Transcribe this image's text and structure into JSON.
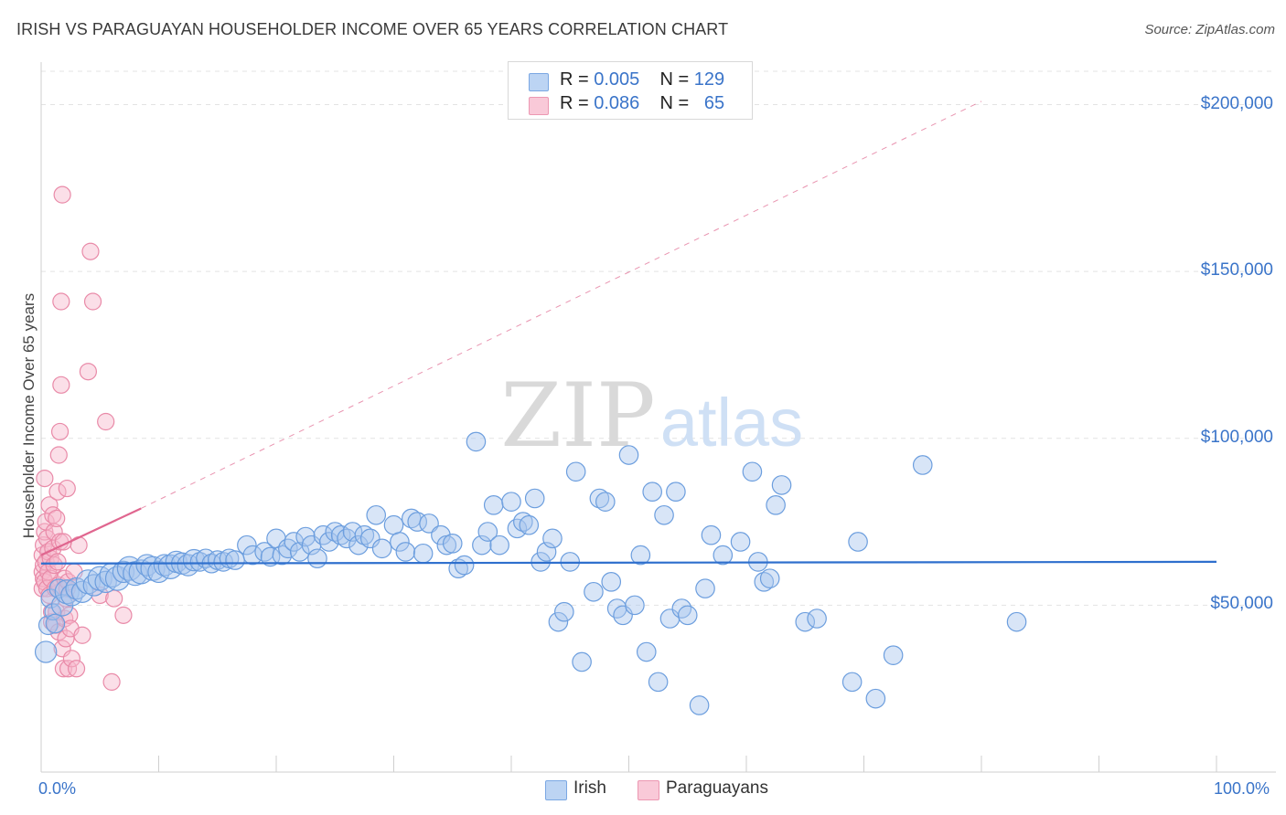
{
  "header": {
    "title": "IRISH VS PARAGUAYAN HOUSEHOLDER INCOME OVER 65 YEARS CORRELATION CHART",
    "source": "Source: ZipAtlas.com"
  },
  "legend": {
    "r_label": "R =",
    "n_label": "N =",
    "series": [
      {
        "name": "Irish",
        "r": "0.005",
        "n": "129"
      },
      {
        "name": "Paraguayans",
        "r": "0.086",
        "n": "65"
      }
    ]
  },
  "watermark": {
    "part1": "ZIP",
    "part2": "atlas"
  },
  "colors": {
    "irish_fill": "#a9c6ee",
    "irish_stroke": "#6c9ede",
    "irish_line": "#2e6fcd",
    "para_fill": "#f6b9cc",
    "para_stroke": "#e98aa8",
    "para_line": "#e0668f",
    "axis_text": "#3a74c9"
  },
  "chart_data": {
    "type": "scatter",
    "title": "IRISH VS PARAGUAYAN HOUSEHOLDER INCOME OVER 65 YEARS CORRELATION CHART",
    "xlabel": "",
    "ylabel": "Householder Income Over 65 years",
    "xlim": [
      0,
      100
    ],
    "ylim": [
      0,
      210000
    ],
    "x_tick_labels": [
      "0.0%",
      "100.0%"
    ],
    "y_ticks": [
      50000,
      100000,
      150000,
      200000
    ],
    "y_tick_labels": [
      "$50,000",
      "$100,000",
      "$150,000",
      "$200,000"
    ],
    "legend_position": "bottom-center",
    "series": [
      {
        "name": "Irish",
        "r": 0.005,
        "n": 129,
        "trend": {
          "x": [
            0,
            100
          ],
          "y": [
            62500,
            63000
          ],
          "style": "solid"
        },
        "points": [
          [
            0.4,
            36000,
            4
          ],
          [
            0.6,
            44000,
            3
          ],
          [
            0.8,
            52000,
            3
          ],
          [
            1.0,
            48000,
            2
          ],
          [
            1.2,
            44500,
            3
          ],
          [
            1.5,
            55000,
            3
          ],
          [
            1.8,
            50000,
            4
          ],
          [
            2.2,
            54000,
            5
          ],
          [
            2.6,
            53000,
            4
          ],
          [
            3.0,
            55000,
            4
          ],
          [
            3.5,
            54000,
            4
          ],
          [
            4.0,
            57000,
            5
          ],
          [
            4.5,
            56000,
            4
          ],
          [
            5.0,
            58000,
            5
          ],
          [
            5.5,
            57000,
            4
          ],
          [
            6.0,
            59000,
            5
          ],
          [
            6.5,
            58000,
            5
          ],
          [
            7.0,
            60000,
            4
          ],
          [
            7.5,
            61000,
            5
          ],
          [
            8.0,
            59500,
            5
          ],
          [
            8.5,
            60000,
            5
          ],
          [
            9.0,
            62000,
            4
          ],
          [
            9.5,
            61000,
            5
          ],
          [
            10.0,
            60000,
            4
          ],
          [
            10.5,
            62000,
            4
          ],
          [
            11.0,
            61500,
            5
          ],
          [
            11.5,
            63000,
            4
          ],
          [
            12.0,
            62500,
            4
          ],
          [
            12.5,
            62000,
            4
          ],
          [
            13.0,
            63500,
            4
          ],
          [
            13.5,
            63000,
            3
          ],
          [
            14.0,
            64000,
            3
          ],
          [
            14.5,
            62500,
            3
          ],
          [
            15.0,
            63500,
            3
          ],
          [
            15.5,
            63000,
            3
          ],
          [
            16.0,
            64000,
            3
          ],
          [
            16.5,
            63500,
            3
          ],
          [
            17.5,
            68000,
            3
          ],
          [
            18.0,
            65000,
            3
          ],
          [
            19.0,
            66000,
            3
          ],
          [
            19.5,
            64500,
            3
          ],
          [
            20.0,
            70000,
            3
          ],
          [
            20.5,
            65000,
            3
          ],
          [
            21.0,
            67000,
            3
          ],
          [
            21.5,
            69000,
            3
          ],
          [
            22.0,
            66000,
            3
          ],
          [
            22.5,
            70500,
            3
          ],
          [
            23.0,
            68000,
            3
          ],
          [
            23.5,
            64000,
            3
          ],
          [
            24.0,
            71000,
            3
          ],
          [
            24.5,
            69000,
            3
          ],
          [
            25.0,
            72000,
            3
          ],
          [
            25.5,
            71000,
            3
          ],
          [
            26.0,
            70000,
            3
          ],
          [
            26.5,
            72000,
            3
          ],
          [
            27.0,
            68000,
            3
          ],
          [
            27.5,
            71000,
            3
          ],
          [
            28.0,
            70000,
            3
          ],
          [
            28.5,
            77000,
            3
          ],
          [
            29.0,
            67000,
            3
          ],
          [
            30.0,
            74000,
            3
          ],
          [
            30.5,
            69000,
            3
          ],
          [
            31.0,
            66000,
            3
          ],
          [
            31.5,
            76000,
            3
          ],
          [
            32.0,
            75000,
            3
          ],
          [
            32.5,
            65500,
            3
          ],
          [
            33.0,
            74500,
            3
          ],
          [
            34.0,
            71000,
            3
          ],
          [
            34.5,
            68000,
            3
          ],
          [
            35.0,
            68500,
            3
          ],
          [
            35.5,
            61000,
            3
          ],
          [
            36.0,
            62000,
            3
          ],
          [
            37.0,
            99000,
            3
          ],
          [
            37.5,
            68000,
            3
          ],
          [
            38.0,
            72000,
            3
          ],
          [
            38.5,
            80000,
            3
          ],
          [
            39.0,
            68000,
            3
          ],
          [
            40.0,
            81000,
            3
          ],
          [
            40.5,
            73000,
            3
          ],
          [
            41.0,
            75000,
            3
          ],
          [
            41.5,
            74000,
            3
          ],
          [
            42.0,
            82000,
            3
          ],
          [
            42.5,
            63000,
            3
          ],
          [
            43.0,
            66000,
            3
          ],
          [
            43.5,
            70000,
            3
          ],
          [
            44.0,
            45000,
            3
          ],
          [
            44.5,
            48000,
            3
          ],
          [
            45.0,
            63000,
            3
          ],
          [
            45.5,
            90000,
            3
          ],
          [
            46.0,
            33000,
            3
          ],
          [
            47.0,
            54000,
            3
          ],
          [
            47.5,
            82000,
            3
          ],
          [
            48.0,
            81000,
            3
          ],
          [
            48.5,
            57000,
            3
          ],
          [
            49.0,
            49000,
            3
          ],
          [
            49.5,
            47000,
            3
          ],
          [
            50.0,
            95000,
            3
          ],
          [
            50.5,
            50000,
            3
          ],
          [
            51.0,
            65000,
            3
          ],
          [
            51.5,
            36000,
            3
          ],
          [
            52.0,
            84000,
            3
          ],
          [
            52.5,
            27000,
            3
          ],
          [
            53.0,
            77000,
            3
          ],
          [
            53.5,
            46000,
            3
          ],
          [
            54.0,
            84000,
            3
          ],
          [
            54.5,
            49000,
            3
          ],
          [
            55.0,
            47000,
            3
          ],
          [
            56.0,
            20000,
            3
          ],
          [
            56.5,
            55000,
            3
          ],
          [
            57.0,
            71000,
            3
          ],
          [
            58.0,
            65000,
            3
          ],
          [
            59.5,
            69000,
            3
          ],
          [
            60.5,
            90000,
            3
          ],
          [
            61.0,
            63000,
            3
          ],
          [
            61.5,
            57000,
            3
          ],
          [
            62.0,
            58000,
            3
          ],
          [
            62.5,
            80000,
            3
          ],
          [
            63.0,
            86000,
            3
          ],
          [
            65.0,
            45000,
            3
          ],
          [
            66.0,
            46000,
            3
          ],
          [
            69.0,
            27000,
            3
          ],
          [
            69.5,
            69000,
            3
          ],
          [
            71.0,
            22000,
            3
          ],
          [
            72.5,
            35000,
            3
          ],
          [
            75.0,
            92000,
            3
          ],
          [
            83.0,
            45000,
            3
          ]
        ]
      },
      {
        "name": "Paraguayans",
        "r": 0.086,
        "n": 65,
        "trend": {
          "x": [
            0,
            8.5,
            80
          ],
          "y": [
            65000,
            79000,
            201000
          ],
          "style": "solid-then-dashed"
        },
        "points": [
          [
            0.1,
            55000
          ],
          [
            0.1,
            60000
          ],
          [
            0.1,
            65000
          ],
          [
            0.2,
            58000
          ],
          [
            0.2,
            62000
          ],
          [
            0.2,
            68000
          ],
          [
            0.3,
            72000
          ],
          [
            0.3,
            57000
          ],
          [
            0.4,
            75000
          ],
          [
            0.4,
            63000
          ],
          [
            0.5,
            70000
          ],
          [
            0.5,
            55000
          ],
          [
            0.6,
            66000
          ],
          [
            0.6,
            60000
          ],
          [
            0.7,
            80000
          ],
          [
            0.7,
            53000
          ],
          [
            0.8,
            64000
          ],
          [
            0.8,
            58000
          ],
          [
            0.9,
            45000
          ],
          [
            0.9,
            48000
          ],
          [
            1.0,
            77000
          ],
          [
            1.0,
            67000
          ],
          [
            1.1,
            72000
          ],
          [
            1.1,
            62000
          ],
          [
            1.2,
            55000
          ],
          [
            1.2,
            44000
          ],
          [
            1.3,
            76000
          ],
          [
            1.3,
            48000
          ],
          [
            1.4,
            84000
          ],
          [
            1.4,
            63000
          ],
          [
            1.5,
            56000
          ],
          [
            1.5,
            42000
          ],
          [
            1.6,
            69000
          ],
          [
            1.6,
            102000
          ],
          [
            1.7,
            116000
          ],
          [
            1.7,
            141000
          ],
          [
            1.8,
            173000
          ],
          [
            1.8,
            37000
          ],
          [
            1.9,
            31000
          ],
          [
            1.9,
            69000
          ],
          [
            2.0,
            58000
          ],
          [
            2.0,
            46000
          ],
          [
            2.1,
            40000
          ],
          [
            2.1,
            52000
          ],
          [
            2.2,
            85000
          ],
          [
            2.2,
            55000
          ],
          [
            2.3,
            31000
          ],
          [
            2.3,
            57000
          ],
          [
            2.4,
            47000
          ],
          [
            2.5,
            43000
          ],
          [
            2.6,
            34000
          ],
          [
            2.8,
            60000
          ],
          [
            3.0,
            31000
          ],
          [
            3.2,
            68000
          ],
          [
            3.5,
            41000
          ],
          [
            4.0,
            120000
          ],
          [
            4.2,
            156000
          ],
          [
            4.4,
            141000
          ],
          [
            5.0,
            53000
          ],
          [
            5.5,
            105000
          ],
          [
            6.0,
            27000
          ],
          [
            6.2,
            52000
          ],
          [
            7.0,
            47000
          ],
          [
            0.3,
            88000
          ],
          [
            1.5,
            95000
          ]
        ]
      }
    ]
  }
}
